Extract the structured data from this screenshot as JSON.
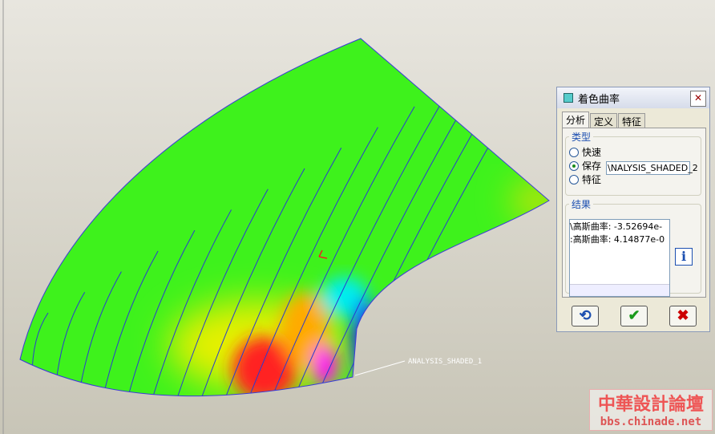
{
  "dialog": {
    "title": "着色曲率",
    "tabs": [
      "分析",
      "定义",
      "特征"
    ],
    "type_group": {
      "label": "类型",
      "options": [
        "快速",
        "保存",
        "特征"
      ],
      "name_field": "\\NALYSIS_SHADED_2"
    },
    "result_group": {
      "label": "结果",
      "lines": [
        "\\高斯曲率: -3.52694e-",
        ":高斯曲率: 4.14877e-0"
      ]
    }
  },
  "model_label": "ANALYSIS_SHADED_1",
  "watermark": {
    "title": "中華設計論壇",
    "url": "bbs.chinade.net"
  }
}
